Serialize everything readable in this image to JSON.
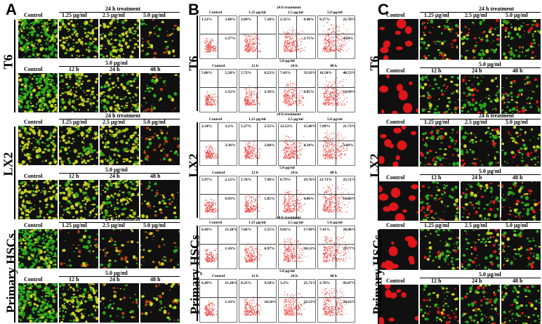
{
  "figure": {
    "panels": [
      {
        "letter": "A"
      },
      {
        "letter": "B"
      },
      {
        "letter": "C"
      }
    ],
    "row_labels": [
      "T6",
      "LX2",
      "Primary HSCs"
    ],
    "header_24h": "24 h treatment",
    "header_5ug": "5.0 µg/ml",
    "dose_labels": [
      "Control",
      "1.25 µg/ml",
      "2.5 µg/ml",
      "5.0 µg/ml"
    ],
    "time_labels": [
      "Control",
      "12 h",
      "24 h",
      "48 h"
    ],
    "colors": {
      "green": "#2aa81a",
      "yellow": "#c8d020",
      "red": "#e0161a",
      "dark": "#101010",
      "dot": "#e8403c"
    }
  },
  "flow": {
    "header_24h": "24 h treatment",
    "header_5ug": "5.0 µg/ml",
    "dose_labels": [
      "Control",
      "1.25 µg/ml",
      "2.5 µg/ml",
      "5.0 µg/ml"
    ],
    "time_labels": [
      "Control",
      "12 h",
      "24 h",
      "48 h"
    ],
    "rows": [
      [
        [
          "1.53%",
          "3.68%",
          "",
          "1.57%"
        ],
        [
          "2.09%",
          "7.20%",
          "",
          ""
        ],
        [
          "2.35%",
          "8.48%",
          "",
          "2.75%"
        ],
        [
          "9.27%",
          "22.78%",
          "",
          "4.18%"
        ]
      ],
      [
        [
          "5.06%",
          "5.58%",
          "",
          "1.52%"
        ],
        [
          "5.72%",
          "8.23%",
          "",
          "2.36%"
        ],
        [
          "7.41%",
          "33.93%",
          "",
          "0.85%"
        ],
        [
          "16.50%",
          "40.53%",
          "",
          "14.69%"
        ]
      ],
      [
        [
          "2.34%",
          "3.2%",
          "",
          "3.36%"
        ],
        [
          "5.27%",
          "2.55%",
          "",
          "2.68%"
        ],
        [
          "12.53%",
          "15.86%",
          "",
          "4.34%"
        ],
        [
          "7.89%",
          "21.72%",
          "",
          "3.68%"
        ]
      ],
      [
        [
          "5.97%",
          "2.12%",
          "",
          "0.93%"
        ],
        [
          "5.76%",
          "7.96%",
          "",
          "1.85%"
        ],
        [
          "6.79%",
          "19.76%",
          "",
          "4.06%"
        ],
        [
          "21.73%",
          "25.51%",
          "",
          "10.66%"
        ]
      ],
      [
        [
          "6.49%",
          "11.28%",
          "",
          "1.16%"
        ],
        [
          "7.66%",
          "5.55%",
          "",
          "6.97%"
        ],
        [
          "9.02%",
          "17.09%",
          "",
          "30.53%"
        ],
        [
          "7.41%",
          "28.06%",
          "",
          "27.77%"
        ]
      ],
      [
        [
          "6.49%",
          "11.28%",
          "",
          "1.16%"
        ],
        [
          "8.25%",
          "9.18%",
          "",
          "10.56%"
        ],
        [
          "3.2%",
          "25.71%",
          "",
          "33.53%"
        ],
        [
          "2.78%",
          "43.07%",
          "",
          "20.63%"
        ]
      ]
    ]
  }
}
